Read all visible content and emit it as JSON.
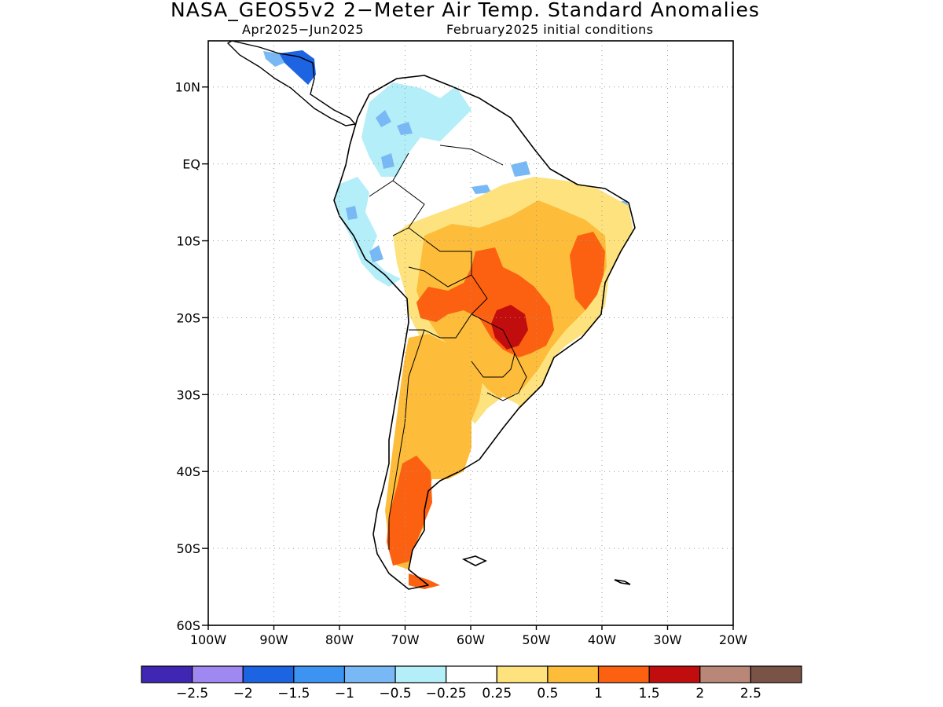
{
  "title": "NASA_GEOS5v2 2−Meter Air Temp. Standard Anomalies",
  "subtitle_period": "Apr2025−Jun2025",
  "subtitle_init": "February2025 initial conditions",
  "axes": {
    "lat_labels": [
      "10N",
      "EQ",
      "10S",
      "20S",
      "30S",
      "40S",
      "50S",
      "60S"
    ],
    "lon_labels": [
      "100W",
      "90W",
      "80W",
      "70W",
      "60W",
      "50W",
      "40W",
      "30W",
      "20W"
    ],
    "lat_range": [
      -60,
      16
    ],
    "lon_range": [
      -100,
      -20
    ],
    "grid": "dotted"
  },
  "colorbar": {
    "colors": [
      "#3f27b4",
      "#9f88f2",
      "#1d64e3",
      "#3d93f1",
      "#78b9f5",
      "#b4eef8",
      "#ffffff",
      "#fde27d",
      "#fdbc3a",
      "#fb6110",
      "#c10d0d",
      "#b88778",
      "#7a5347"
    ],
    "labels": [
      "−2.5",
      "−2",
      "−1.5",
      "−1",
      "−0.5",
      "−0.25",
      "0.25",
      "0.5",
      "1",
      "1.5",
      "2",
      "2.5"
    ]
  },
  "map_regions": [
    {
      "name": "central-america-cold",
      "category": "-1.5",
      "color": "#1d64e3"
    },
    {
      "name": "colombia-venezuela-cool",
      "category": "-0.5",
      "color": "#b4eef8"
    },
    {
      "name": "amazon-neutral",
      "category": "neutral",
      "color": "#ffffff"
    },
    {
      "name": "brazil-warm",
      "category": "0.5",
      "color": "#fde27d"
    },
    {
      "name": "central-brazil-warmer",
      "category": "1",
      "color": "#fdbc3a"
    },
    {
      "name": "mato-grosso-hot",
      "category": "1.5",
      "color": "#fb6110"
    },
    {
      "name": "mato-grosso-core",
      "category": "2",
      "color": "#c10d0d"
    },
    {
      "name": "argentina-warm",
      "category": "1",
      "color": "#fdbc3a"
    },
    {
      "name": "patagonia-hot",
      "category": "1.5",
      "color": "#fb6110"
    },
    {
      "name": "uruguay-neutral",
      "category": "neutral",
      "color": "#ffffff"
    }
  ]
}
